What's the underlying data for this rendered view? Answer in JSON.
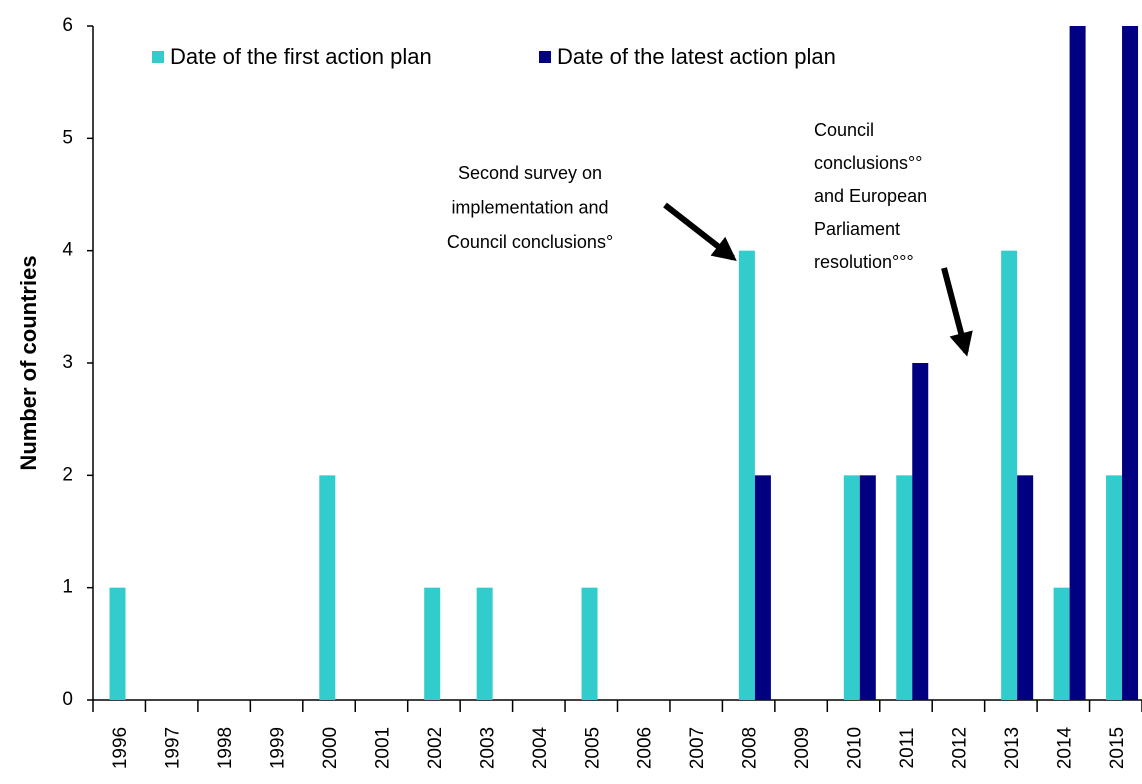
{
  "chart_data": {
    "type": "bar",
    "ylabel": "Number of countries",
    "categories": [
      "1996",
      "1997",
      "1998",
      "1999",
      "2000",
      "2001",
      "2002",
      "2003",
      "2004",
      "2005",
      "2006",
      "2007",
      "2008",
      "2009",
      "2010",
      "2011",
      "2012",
      "2013",
      "2014",
      "2015"
    ],
    "series": [
      {
        "name": "Date of the first action plan",
        "color": "#33cccc",
        "values": [
          1,
          0,
          0,
          0,
          2,
          0,
          1,
          1,
          0,
          1,
          0,
          0,
          4,
          0,
          2,
          2,
          0,
          4,
          1,
          2
        ]
      },
      {
        "name": "Date of the latest action plan",
        "color": "#000080",
        "values": [
          0,
          0,
          0,
          0,
          0,
          0,
          0,
          0,
          0,
          0,
          0,
          0,
          2,
          0,
          2,
          3,
          0,
          2,
          6,
          6
        ]
      }
    ],
    "ylim": [
      0,
      6
    ],
    "yticks": [
      0,
      1,
      2,
      3,
      4,
      5,
      6
    ],
    "grid": false,
    "legend": "top-left",
    "annotations": [
      {
        "lines": [
          "Second survey on",
          "implementation and",
          "Council conclusions°"
        ]
      },
      {
        "lines": [
          "Council",
          "conclusions°°",
          "and European",
          "Parliament",
          "resolution°°°"
        ]
      }
    ]
  }
}
